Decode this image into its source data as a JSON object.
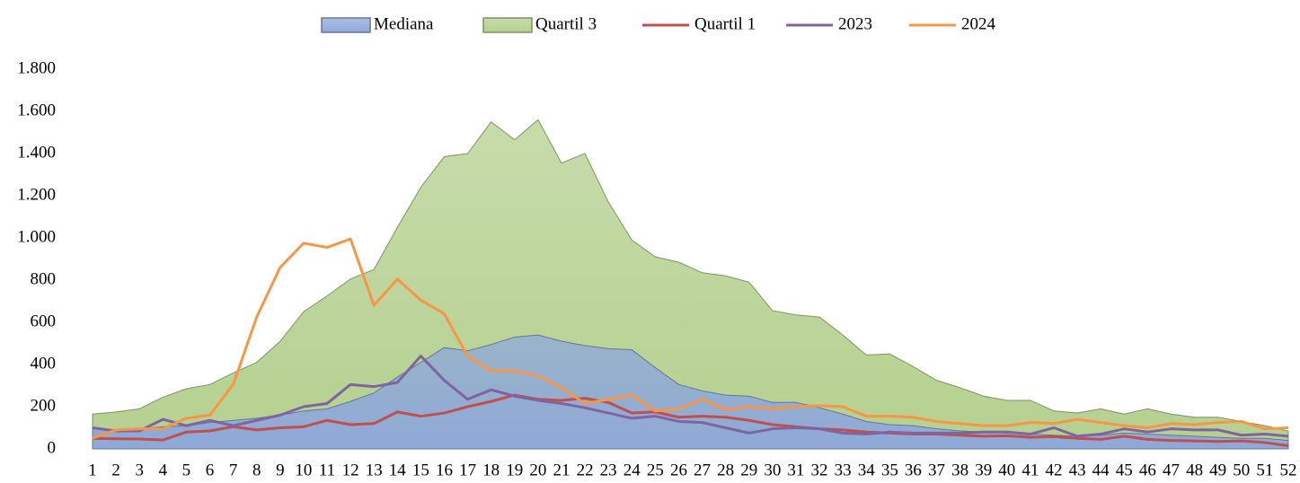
{
  "chart_data": {
    "type": "area",
    "categories": [
      "1",
      "2",
      "3",
      "4",
      "5",
      "6",
      "7",
      "8",
      "9",
      "10",
      "11",
      "12",
      "13",
      "14",
      "15",
      "16",
      "17",
      "18",
      "19",
      "20",
      "21",
      "22",
      "23",
      "24",
      "25",
      "26",
      "27",
      "28",
      "29",
      "30",
      "31",
      "32",
      "33",
      "34",
      "35",
      "36",
      "37",
      "38",
      "39",
      "40",
      "41",
      "42",
      "43",
      "44",
      "45",
      "46",
      "47",
      "48",
      "49",
      "50",
      "51",
      "52"
    ],
    "series": [
      {
        "name": "Mediana",
        "type": "area",
        "color": "#8fa9d9",
        "values": [
          95,
          90,
          95,
          105,
          110,
          125,
          135,
          145,
          160,
          180,
          190,
          225,
          265,
          340,
          410,
          480,
          465,
          495,
          530,
          540,
          510,
          490,
          475,
          470,
          385,
          305,
          275,
          255,
          250,
          220,
          220,
          195,
          165,
          130,
          115,
          110,
          95,
          85,
          80,
          75,
          70,
          65,
          60,
          65,
          75,
          70,
          65,
          60,
          55,
          50,
          50,
          40
        ]
      },
      {
        "name": "Quartil 3",
        "type": "area",
        "color": "#b5d08f",
        "values": [
          165,
          175,
          190,
          245,
          285,
          305,
          360,
          410,
          510,
          650,
          725,
          805,
          850,
          1050,
          1240,
          1385,
          1400,
          1550,
          1465,
          1560,
          1355,
          1400,
          1170,
          990,
          910,
          885,
          835,
          820,
          790,
          655,
          635,
          625,
          540,
          445,
          450,
          390,
          325,
          290,
          250,
          230,
          230,
          180,
          170,
          190,
          165,
          190,
          165,
          150,
          150,
          130,
          110,
          85
        ]
      },
      {
        "name": "Quartil 1",
        "type": "line",
        "color": "#c0504d",
        "values": [
          50,
          48,
          47,
          42,
          80,
          85,
          105,
          90,
          100,
          105,
          135,
          115,
          120,
          175,
          155,
          170,
          200,
          225,
          255,
          235,
          230,
          240,
          220,
          170,
          175,
          150,
          155,
          150,
          135,
          115,
          105,
          95,
          90,
          80,
          75,
          70,
          70,
          65,
          60,
          62,
          55,
          58,
          50,
          45,
          60,
          45,
          40,
          38,
          35,
          38,
          30,
          15
        ]
      },
      {
        "name": "2023",
        "type": "line",
        "color": "#8064a2",
        "values": [
          100,
          85,
          85,
          140,
          110,
          135,
          110,
          135,
          160,
          200,
          215,
          305,
          295,
          315,
          440,
          325,
          235,
          280,
          250,
          230,
          215,
          195,
          170,
          145,
          155,
          130,
          125,
          100,
          75,
          95,
          100,
          95,
          75,
          70,
          80,
          75,
          75,
          75,
          80,
          80,
          70,
          100,
          60,
          70,
          95,
          80,
          95,
          90,
          90,
          65,
          70,
          60
        ]
      },
      {
        "name": "2024",
        "type": "line",
        "color": "#f79646",
        "values": [
          50,
          90,
          95,
          95,
          145,
          160,
          305,
          625,
          860,
          975,
          955,
          995,
          680,
          805,
          705,
          640,
          440,
          370,
          370,
          345,
          290,
          215,
          235,
          255,
          180,
          190,
          235,
          185,
          200,
          190,
          200,
          205,
          200,
          155,
          155,
          150,
          130,
          120,
          110,
          110,
          125,
          120,
          140,
          125,
          110,
          100,
          120,
          115,
          125,
          130,
          95,
          100
        ]
      }
    ],
    "ylim": [
      0,
      1800
    ],
    "yticks": [
      0,
      200,
      400,
      600,
      800,
      {
        "value": 1000,
        "label": "1.000"
      },
      {
        "value": 1200,
        "label": "1.200"
      },
      {
        "value": 1400,
        "label": "1.400"
      },
      {
        "value": 1600,
        "label": "1.600"
      },
      {
        "value": 1800,
        "label": "1.800"
      }
    ],
    "grid": false,
    "legend": "top"
  }
}
